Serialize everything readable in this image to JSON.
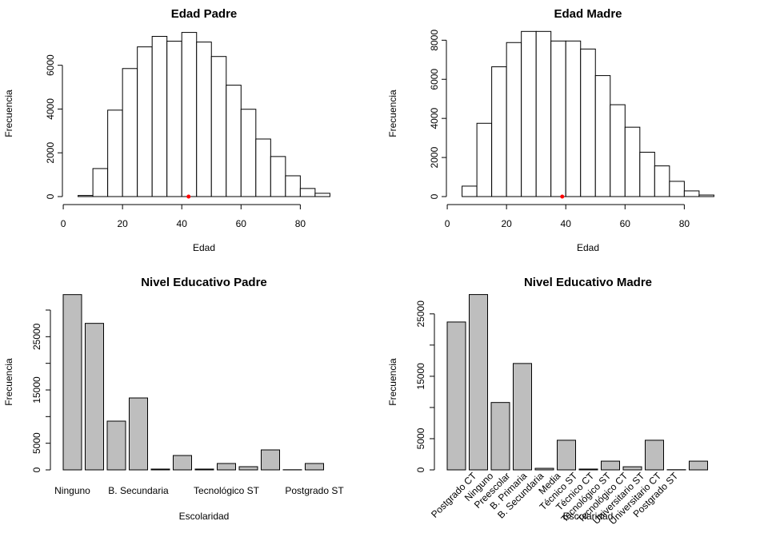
{
  "chart_data": [
    {
      "type": "histogram",
      "title": "Edad Padre",
      "xlabel": "Edad",
      "ylabel": "Frecuencia",
      "bins": [
        5,
        10,
        15,
        20,
        25,
        30,
        35,
        40,
        45,
        50,
        55,
        60,
        65,
        70,
        75,
        80,
        85,
        90
      ],
      "values": [
        50,
        1280,
        3950,
        5850,
        6840,
        7320,
        7100,
        7500,
        7060,
        6400,
        5090,
        3990,
        2630,
        1830,
        950,
        370,
        150
      ],
      "color": "#ffffff",
      "xlim": [
        1.6,
        93.4
      ],
      "xticks": [
        0,
        20,
        40,
        60,
        80
      ],
      "ylim": [
        0,
        7850
      ],
      "yticks": [
        0,
        2000,
        4000,
        6000
      ],
      "marker_x": 42.3,
      "marker_color": "#ff0000"
    },
    {
      "type": "histogram",
      "title": "Edad Madre",
      "xlabel": "Edad",
      "ylabel": "Frecuencia",
      "bins": [
        5,
        10,
        15,
        20,
        25,
        30,
        35,
        40,
        45,
        50,
        55,
        60,
        65,
        70,
        75,
        80,
        85,
        90
      ],
      "values": [
        535,
        3750,
        6640,
        7880,
        8450,
        8450,
        7960,
        7960,
        7550,
        6190,
        4700,
        3550,
        2270,
        1570,
        780,
        290,
        80
      ],
      "color": "#ffffff",
      "xlim": [
        1.6,
        93.4
      ],
      "xticks": [
        0,
        20,
        40,
        60,
        80
      ],
      "ylim": [
        0,
        8790
      ],
      "yticks": [
        0,
        2000,
        4000,
        6000,
        8000
      ],
      "marker_x": 38.8,
      "marker_color": "#ff0000"
    },
    {
      "type": "bar",
      "title": "Nivel Educativo Padre",
      "xlabel": "Escolaridad",
      "ylabel": "Frecuencia",
      "categories": [
        "Ninguno",
        null,
        null,
        "B. Secundaria",
        null,
        null,
        null,
        "Tecnológico ST",
        null,
        null,
        null,
        "Postgrado ST",
        null
      ],
      "values": [
        32900,
        27500,
        9150,
        13500,
        150,
        2700,
        150,
        1200,
        600,
        3750,
        30,
        1200,
        0
      ],
      "color": "#bebebe",
      "ylim": [
        0,
        34200
      ],
      "yticks": [
        0,
        5000,
        15000,
        25000
      ],
      "yticks_minor": [
        10000,
        20000,
        30000
      ]
    },
    {
      "type": "bar",
      "title": "Nivel Educativo Madre",
      "xlabel": "Escolaridad",
      "ylabel": "Frecuencia",
      "categories": [
        "Postgrado CT",
        "Ninguno",
        "Preescolar",
        "B. Primaria",
        "B. Secundaria",
        "Media",
        "Técnico ST",
        "Técnico CT",
        "Tecnológico ST",
        "Tecnológico CT",
        "Universitario ST",
        "Universitario CT",
        "Postgrado ST"
      ],
      "label_rotation": -45,
      "values": [
        23700,
        28100,
        10800,
        17050,
        250,
        4750,
        130,
        1400,
        500,
        4750,
        30,
        1400,
        0
      ],
      "color": "#bebebe",
      "ylim": [
        0,
        29200
      ],
      "yticks": [
        0,
        5000,
        15000,
        25000
      ],
      "yticks_minor": [
        10000,
        20000
      ]
    }
  ]
}
